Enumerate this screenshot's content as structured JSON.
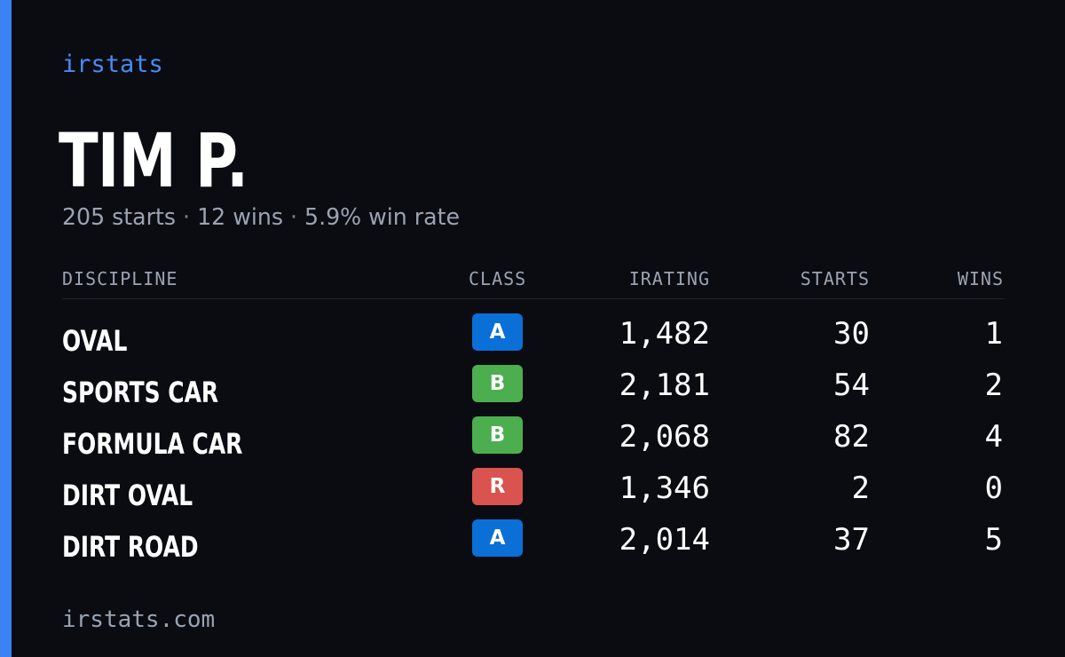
{
  "brand": "irstats",
  "driver": {
    "name": "TIM P."
  },
  "summary": {
    "starts": "205 starts",
    "wins": "12 wins",
    "win_rate": "5.9% win rate",
    "separator": "·"
  },
  "table": {
    "headers": {
      "discipline": "DISCIPLINE",
      "class": "CLASS",
      "irating": "IRATING",
      "starts": "STARTS",
      "wins": "WINS"
    },
    "rows": [
      {
        "discipline": "OVAL",
        "class": "A",
        "class_color": "#0a6fd6",
        "irating": "1,482",
        "starts": "30",
        "wins": "1"
      },
      {
        "discipline": "SPORTS CAR",
        "class": "B",
        "class_color": "#4cae4f",
        "irating": "2,181",
        "starts": "54",
        "wins": "2"
      },
      {
        "discipline": "FORMULA CAR",
        "class": "B",
        "class_color": "#4cae4f",
        "irating": "2,068",
        "starts": "82",
        "wins": "4"
      },
      {
        "discipline": "DIRT OVAL",
        "class": "R",
        "class_color": "#d9534f",
        "irating": "1,346",
        "starts": "2",
        "wins": "0"
      },
      {
        "discipline": "DIRT ROAD",
        "class": "A",
        "class_color": "#0a6fd6",
        "irating": "2,014",
        "starts": "37",
        "wins": "5"
      }
    ]
  },
  "footer": {
    "url": "irstats.com"
  },
  "colors": {
    "accent": "#3b82f6",
    "background": "#0a0c12"
  }
}
